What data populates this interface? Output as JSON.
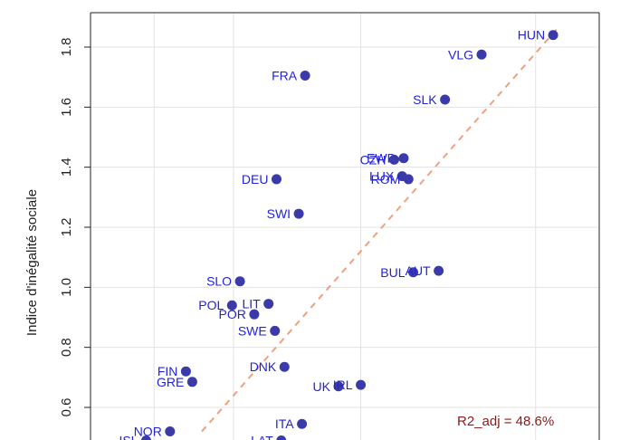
{
  "chart_data": {
    "type": "scatter",
    "ylabel": "Indice d'inégalité sociale",
    "ylim": [
      0.5,
      1.9
    ],
    "y_ticks": [
      "0.6",
      "0.8",
      "1.0",
      "1.2",
      "1.4",
      "1.6",
      "1.8"
    ],
    "x_tick_positions": [
      -1.0,
      -0.5,
      0.3,
      1.4
    ],
    "xlim": [
      -1.4,
      1.8
    ],
    "grid": true,
    "point_color": "#3a3aa8",
    "label_color": "#2323d6",
    "fit_line_color": "#f0a080",
    "annotation_color": "#8b1a1a",
    "fit_line": {
      "from": [
        -0.7,
        0.52
      ],
      "to": [
        1.55,
        1.87
      ]
    },
    "annotation": "R2_adj = 48.6%",
    "points": [
      {
        "label": "HUN",
        "x": 1.51,
        "y": 1.84
      },
      {
        "label": "VLG",
        "x": 1.06,
        "y": 1.775
      },
      {
        "label": "FRA",
        "x": -0.05,
        "y": 1.705
      },
      {
        "label": "SLK",
        "x": 0.83,
        "y": 1.625
      },
      {
        "label": "EWB",
        "x": 0.57,
        "y": 1.43
      },
      {
        "label": "CZH",
        "x": 0.51,
        "y": 1.425
      },
      {
        "label": "LUX",
        "x": 0.56,
        "y": 1.37
      },
      {
        "label": "ROM",
        "x": 0.6,
        "y": 1.36
      },
      {
        "label": "DEU",
        "x": -0.23,
        "y": 1.36
      },
      {
        "label": "SWI",
        "x": -0.09,
        "y": 1.245
      },
      {
        "label": "BUL",
        "x": 0.63,
        "y": 1.05
      },
      {
        "label": "AUT",
        "x": 0.79,
        "y": 1.055
      },
      {
        "label": "SLO",
        "x": -0.46,
        "y": 1.02
      },
      {
        "label": "POL",
        "x": -0.51,
        "y": 0.94
      },
      {
        "label": "LIT",
        "x": -0.28,
        "y": 0.945
      },
      {
        "label": "POR",
        "x": -0.37,
        "y": 0.91
      },
      {
        "label": "SWE",
        "x": -0.24,
        "y": 0.855
      },
      {
        "label": "DNK",
        "x": -0.18,
        "y": 0.735
      },
      {
        "label": "FIN",
        "x": -0.8,
        "y": 0.72
      },
      {
        "label": "GRE",
        "x": -0.76,
        "y": 0.685
      },
      {
        "label": "UK",
        "x": 0.16,
        "y": 0.67
      },
      {
        "label": "IRL",
        "x": 0.3,
        "y": 0.675
      },
      {
        "label": "ITA",
        "x": -0.07,
        "y": 0.545
      },
      {
        "label": "NOR",
        "x": -0.9,
        "y": 0.52
      },
      {
        "label": "LAT",
        "x": -0.2,
        "y": 0.49
      },
      {
        "label": "ISL",
        "x": -1.05,
        "y": 0.49
      }
    ]
  }
}
